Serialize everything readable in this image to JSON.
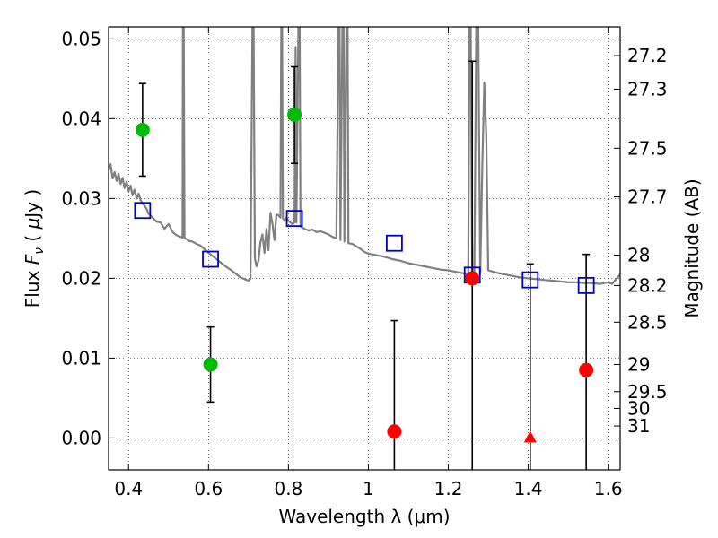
{
  "chart_data": {
    "type": "scatter",
    "xlabel": "Wavelength  λ (μm)",
    "ylabel": "Flux  F_ν  ( μJy )",
    "ylabel_parts": {
      "pre": "Flux  ",
      "var": "F",
      "sub": "ν",
      "post": "  ( ",
      "mu": "μ",
      "unit": "Jy )"
    },
    "y2label": "Magnitude (AB)",
    "xlim": [
      0.35,
      1.63
    ],
    "ylim": [
      -0.004,
      0.0515
    ],
    "grid": true,
    "x_ticks": [
      {
        "v": 0.4,
        "label": "0.4"
      },
      {
        "v": 0.6,
        "label": "0.6"
      },
      {
        "v": 0.8,
        "label": "0.8"
      },
      {
        "v": 1.0,
        "label": "1"
      },
      {
        "v": 1.2,
        "label": "1.2"
      },
      {
        "v": 1.4,
        "label": "1.4"
      },
      {
        "v": 1.6,
        "label": "1.6"
      }
    ],
    "y_ticks": [
      {
        "v": 0.0,
        "label": "0.00"
      },
      {
        "v": 0.01,
        "label": "0.01"
      },
      {
        "v": 0.02,
        "label": "0.02"
      },
      {
        "v": 0.03,
        "label": "0.03"
      },
      {
        "v": 0.04,
        "label": "0.04"
      },
      {
        "v": 0.05,
        "label": "0.05"
      }
    ],
    "mag_ticks": [
      {
        "v": 0.0479,
        "label": "27.2"
      },
      {
        "v": 0.0437,
        "label": "27.3"
      },
      {
        "v": 0.0363,
        "label": "27.5"
      },
      {
        "v": 0.0302,
        "label": "27.7"
      },
      {
        "v": 0.0229,
        "label": "28"
      },
      {
        "v": 0.0191,
        "label": "28.2"
      },
      {
        "v": 0.0145,
        "label": "28.5"
      },
      {
        "v": 0.0092,
        "label": "29"
      },
      {
        "v": 0.0058,
        "label": "29.5"
      },
      {
        "v": 0.0037,
        "label": "30"
      },
      {
        "v": 0.0015,
        "label": "31"
      }
    ],
    "model_spectrum": {
      "color": "#808080",
      "points": [
        [
          0.35,
          0.0335
        ],
        [
          0.355,
          0.0343
        ],
        [
          0.36,
          0.0325
        ],
        [
          0.365,
          0.0333
        ],
        [
          0.37,
          0.0322
        ],
        [
          0.375,
          0.0331
        ],
        [
          0.38,
          0.0318
        ],
        [
          0.385,
          0.0326
        ],
        [
          0.39,
          0.0313
        ],
        [
          0.395,
          0.0321
        ],
        [
          0.4,
          0.0309
        ],
        [
          0.405,
          0.0316
        ],
        [
          0.41,
          0.0304
        ],
        [
          0.415,
          0.0311
        ],
        [
          0.42,
          0.03
        ],
        [
          0.425,
          0.0306
        ],
        [
          0.43,
          0.0298
        ],
        [
          0.435,
          0.0294
        ],
        [
          0.44,
          0.0291
        ],
        [
          0.445,
          0.0287
        ],
        [
          0.45,
          0.0281
        ],
        [
          0.46,
          0.0276
        ],
        [
          0.47,
          0.0271
        ],
        [
          0.48,
          0.027
        ],
        [
          0.49,
          0.0262
        ],
        [
          0.5,
          0.0268
        ],
        [
          0.51,
          0.0258
        ],
        [
          0.52,
          0.0254
        ],
        [
          0.53,
          0.0252
        ],
        [
          0.535,
          0.0251
        ],
        [
          0.536,
          0.0515
        ],
        [
          0.538,
          0.0515
        ],
        [
          0.54,
          0.0251
        ],
        [
          0.55,
          0.0247
        ],
        [
          0.56,
          0.0246
        ],
        [
          0.57,
          0.0243
        ],
        [
          0.58,
          0.0241
        ],
        [
          0.6,
          0.0232
        ],
        [
          0.62,
          0.0224
        ],
        [
          0.64,
          0.0216
        ],
        [
          0.66,
          0.0209
        ],
        [
          0.68,
          0.0201
        ],
        [
          0.7,
          0.0197
        ],
        [
          0.705,
          0.02
        ],
        [
          0.71,
          0.0515
        ],
        [
          0.713,
          0.0515
        ],
        [
          0.716,
          0.0225
        ],
        [
          0.72,
          0.0215
        ],
        [
          0.725,
          0.0222
        ],
        [
          0.73,
          0.0245
        ],
        [
          0.735,
          0.0255
        ],
        [
          0.74,
          0.0232
        ],
        [
          0.745,
          0.0262
        ],
        [
          0.75,
          0.0235
        ],
        [
          0.755,
          0.0282
        ],
        [
          0.76,
          0.0268
        ],
        [
          0.765,
          0.0248
        ],
        [
          0.77,
          0.028
        ],
        [
          0.775,
          0.0279
        ],
        [
          0.78,
          0.0276
        ],
        [
          0.782,
          0.0515
        ],
        [
          0.784,
          0.0515
        ],
        [
          0.786,
          0.0275
        ],
        [
          0.79,
          0.0272
        ],
        [
          0.795,
          0.0276
        ],
        [
          0.8,
          0.0272
        ],
        [
          0.81,
          0.0268
        ],
        [
          0.815,
          0.027
        ],
        [
          0.818,
          0.049
        ],
        [
          0.82,
          0.027
        ],
        [
          0.825,
          0.0515
        ],
        [
          0.828,
          0.0515
        ],
        [
          0.83,
          0.0265
        ],
        [
          0.84,
          0.0262
        ],
        [
          0.85,
          0.026
        ],
        [
          0.86,
          0.0261
        ],
        [
          0.87,
          0.0258
        ],
        [
          0.88,
          0.0259
        ],
        [
          0.89,
          0.0257
        ],
        [
          0.9,
          0.0255
        ],
        [
          0.91,
          0.0252
        ],
        [
          0.92,
          0.025
        ],
        [
          0.925,
          0.0515
        ],
        [
          0.928,
          0.0515
        ],
        [
          0.93,
          0.0248
        ],
        [
          0.935,
          0.0515
        ],
        [
          0.938,
          0.0515
        ],
        [
          0.94,
          0.0246
        ],
        [
          0.945,
          0.0515
        ],
        [
          0.948,
          0.0515
        ],
        [
          0.95,
          0.0244
        ],
        [
          0.96,
          0.0243
        ],
        [
          0.97,
          0.024
        ],
        [
          0.98,
          0.0237
        ],
        [
          0.99,
          0.0233
        ],
        [
          1.0,
          0.0231
        ],
        [
          1.02,
          0.0229
        ],
        [
          1.04,
          0.0227
        ],
        [
          1.06,
          0.0224
        ],
        [
          1.08,
          0.0222
        ],
        [
          1.1,
          0.0219
        ],
        [
          1.12,
          0.0217
        ],
        [
          1.14,
          0.0215
        ],
        [
          1.16,
          0.0213
        ],
        [
          1.18,
          0.0211
        ],
        [
          1.2,
          0.021
        ],
        [
          1.22,
          0.0208
        ],
        [
          1.24,
          0.0206
        ],
        [
          1.25,
          0.0205
        ],
        [
          1.253,
          0.0515
        ],
        [
          1.256,
          0.0515
        ],
        [
          1.26,
          0.0205
        ],
        [
          1.265,
          0.0202
        ],
        [
          1.27,
          0.0515
        ],
        [
          1.275,
          0.0515
        ],
        [
          1.28,
          0.0205
        ],
        [
          1.285,
          0.034
        ],
        [
          1.29,
          0.0445
        ],
        [
          1.295,
          0.038
        ],
        [
          1.3,
          0.021
        ],
        [
          1.32,
          0.0207
        ],
        [
          1.34,
          0.0205
        ],
        [
          1.36,
          0.0203
        ],
        [
          1.38,
          0.0201
        ],
        [
          1.4,
          0.02
        ],
        [
          1.42,
          0.0199
        ],
        [
          1.44,
          0.0198
        ],
        [
          1.46,
          0.0197
        ],
        [
          1.48,
          0.0196
        ],
        [
          1.5,
          0.0195
        ],
        [
          1.52,
          0.0195
        ],
        [
          1.54,
          0.0194
        ],
        [
          1.56,
          0.0194
        ],
        [
          1.58,
          0.0193
        ],
        [
          1.6,
          0.0195
        ],
        [
          1.61,
          0.0193
        ],
        [
          1.63,
          0.0205
        ]
      ]
    },
    "model_fluxes": {
      "color": "#0000cc",
      "points": [
        [
          0.435,
          0.0285
        ],
        [
          0.605,
          0.0224
        ],
        [
          0.815,
          0.0275
        ],
        [
          1.065,
          0.0244
        ],
        [
          1.26,
          0.0204
        ],
        [
          1.405,
          0.0198
        ],
        [
          1.545,
          0.0191
        ]
      ]
    },
    "detections": {
      "color": "#00bb00",
      "points": [
        {
          "x": 0.435,
          "y": 0.0386,
          "lo": 0.0328,
          "hi": 0.0444
        },
        {
          "x": 0.605,
          "y": 0.0092,
          "lo": 0.0045,
          "hi": 0.0139
        },
        {
          "x": 0.815,
          "y": 0.0405,
          "lo": 0.0344,
          "hi": 0.0465
        }
      ]
    },
    "nondetections": {
      "color": "#ff0000",
      "points": [
        {
          "x": 1.065,
          "y": 0.0008,
          "lo": -0.004,
          "hi": 0.0147,
          "marker": "circle"
        },
        {
          "x": 1.26,
          "y": 0.02,
          "lo": -0.004,
          "hi": 0.0472,
          "marker": "circle"
        },
        {
          "x": 1.405,
          "y": 0.0,
          "lo": -0.004,
          "hi": 0.0218,
          "marker": "triangle"
        },
        {
          "x": 1.545,
          "y": 0.0085,
          "lo": -0.004,
          "hi": 0.023,
          "marker": "circle"
        }
      ]
    }
  }
}
